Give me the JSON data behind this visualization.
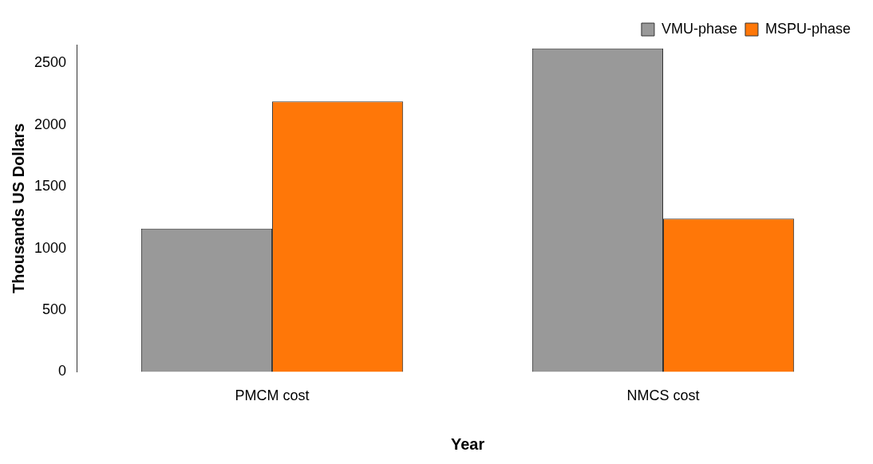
{
  "chart_data": {
    "type": "bar",
    "xlabel": "Year",
    "ylabel": "Thousands US Dollars",
    "categories": [
      "PMCM cost",
      "NMCS cost"
    ],
    "series": [
      {
        "name": "VMU-phase",
        "color": "#999999",
        "values": [
          1160,
          2620
        ]
      },
      {
        "name": "MSPU-phase",
        "color": "#ff7708",
        "values": [
          2190,
          1240
        ]
      }
    ],
    "ylim": [
      0,
      2650
    ],
    "yticks": [
      0,
      500,
      1000,
      1500,
      2000,
      2500
    ],
    "grid": false,
    "legend": "top right"
  }
}
